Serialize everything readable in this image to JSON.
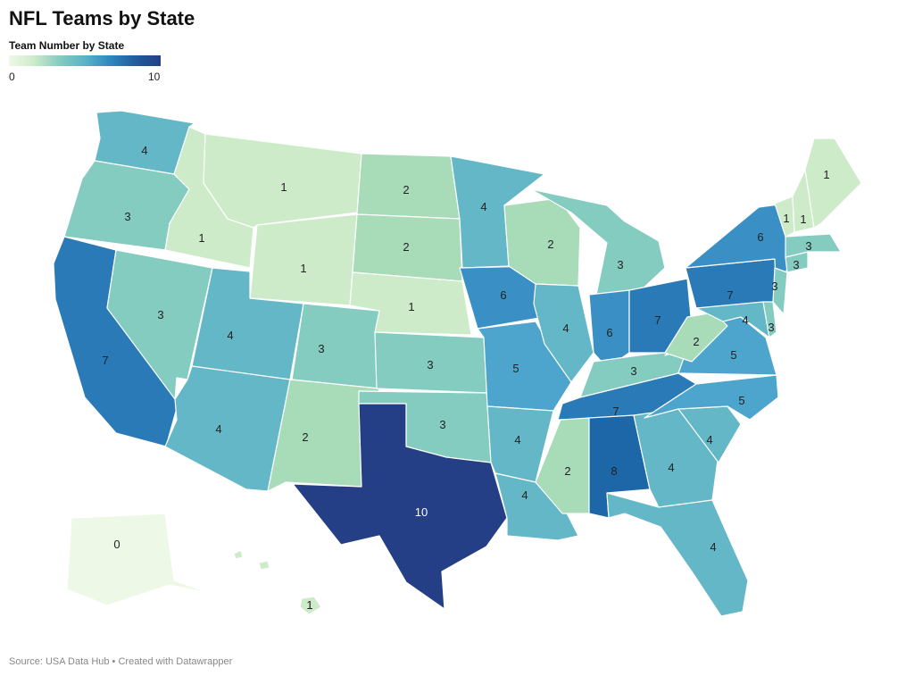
{
  "title": "NFL Teams by State",
  "legend": {
    "title": "Team Number by State",
    "min_label": "0",
    "max_label": "10"
  },
  "source": "Source: USA Data Hub • Created with Datawrapper",
  "colors": {
    "c0": "#eef8e6",
    "c1": "#cdebc9",
    "c2": "#a8dbb8",
    "c3": "#84cbc0",
    "c4": "#64b7c7",
    "c5": "#4da4cc",
    "c6": "#3a8fc4",
    "c7": "#2a7ab7",
    "c8": "#1d66a8",
    "c10": "#243f85"
  },
  "states": [
    {
      "id": "WA",
      "name": "Washington",
      "value": 4
    },
    {
      "id": "OR",
      "name": "Oregon",
      "value": 3
    },
    {
      "id": "CA",
      "name": "California",
      "value": 7
    },
    {
      "id": "NV",
      "name": "Nevada",
      "value": 3
    },
    {
      "id": "ID",
      "name": "Idaho",
      "value": 1
    },
    {
      "id": "MT",
      "name": "Montana",
      "value": 1
    },
    {
      "id": "WY",
      "name": "Wyoming",
      "value": 1
    },
    {
      "id": "UT",
      "name": "Utah",
      "value": 4
    },
    {
      "id": "AZ",
      "name": "Arizona",
      "value": 4
    },
    {
      "id": "CO",
      "name": "Colorado",
      "value": 3
    },
    {
      "id": "NM",
      "name": "New Mexico",
      "value": 2
    },
    {
      "id": "ND",
      "name": "North Dakota",
      "value": 2
    },
    {
      "id": "SD",
      "name": "South Dakota",
      "value": 2
    },
    {
      "id": "NE",
      "name": "Nebraska",
      "value": 1
    },
    {
      "id": "KS",
      "name": "Kansas",
      "value": 3
    },
    {
      "id": "OK",
      "name": "Oklahoma",
      "value": 3
    },
    {
      "id": "TX",
      "name": "Texas",
      "value": 10
    },
    {
      "id": "MN",
      "name": "Minnesota",
      "value": 4
    },
    {
      "id": "IA",
      "name": "Iowa",
      "value": 6
    },
    {
      "id": "MO",
      "name": "Missouri",
      "value": 5
    },
    {
      "id": "AR",
      "name": "Arkansas",
      "value": 4
    },
    {
      "id": "LA",
      "name": "Louisiana",
      "value": 4
    },
    {
      "id": "WI",
      "name": "Wisconsin",
      "value": 2
    },
    {
      "id": "IL",
      "name": "Illinois",
      "value": 4
    },
    {
      "id": "MI",
      "name": "Michigan",
      "value": 3
    },
    {
      "id": "IN",
      "name": "Indiana",
      "value": 6
    },
    {
      "id": "OH",
      "name": "Ohio",
      "value": 7
    },
    {
      "id": "KY",
      "name": "Kentucky",
      "value": 3
    },
    {
      "id": "TN",
      "name": "Tennessee",
      "value": 7
    },
    {
      "id": "MS",
      "name": "Mississippi",
      "value": 2
    },
    {
      "id": "AL",
      "name": "Alabama",
      "value": 8
    },
    {
      "id": "GA",
      "name": "Georgia",
      "value": 4
    },
    {
      "id": "FL",
      "name": "Florida",
      "value": 4
    },
    {
      "id": "SC",
      "name": "South Carolina",
      "value": 4
    },
    {
      "id": "NC",
      "name": "North Carolina",
      "value": 5
    },
    {
      "id": "VA",
      "name": "Virginia",
      "value": 5
    },
    {
      "id": "WV",
      "name": "West Virginia",
      "value": 2
    },
    {
      "id": "PA",
      "name": "Pennsylvania",
      "value": 7
    },
    {
      "id": "NY",
      "name": "New York",
      "value": 6
    },
    {
      "id": "MD",
      "name": "Maryland",
      "value": 4
    },
    {
      "id": "DE",
      "name": "Delaware",
      "value": 3
    },
    {
      "id": "NJ",
      "name": "New Jersey",
      "value": 3
    },
    {
      "id": "CT",
      "name": "Connecticut",
      "value": 3
    },
    {
      "id": "MA",
      "name": "Massachusetts",
      "value": 3
    },
    {
      "id": "VT",
      "name": "Vermont",
      "value": 1
    },
    {
      "id": "NH",
      "name": "New Hampshire",
      "value": 1
    },
    {
      "id": "ME",
      "name": "Maine",
      "value": 1
    },
    {
      "id": "AK",
      "name": "Alaska",
      "value": 0
    },
    {
      "id": "HI",
      "name": "Hawaii",
      "value": 1
    }
  ]
}
